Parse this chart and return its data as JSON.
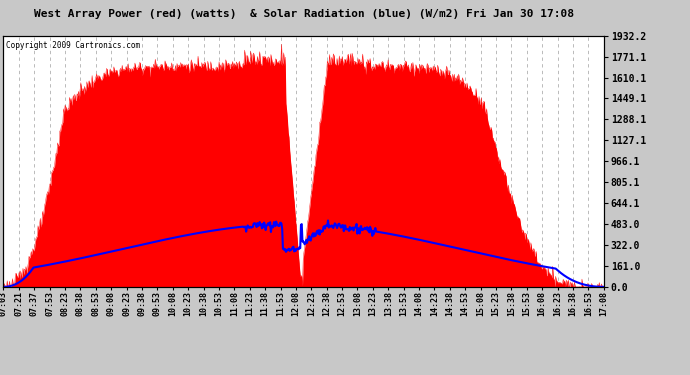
{
  "title": "West Array Power (red) (watts)  & Solar Radiation (blue) (W/m2) Fri Jan 30 17:08",
  "copyright": "Copyright 2009 Cartronics.com",
  "bg_color": "#c8c8c8",
  "plot_bg_color": "#ffffff",
  "grid_color": "#b0b0b0",
  "red_color": "#ff0000",
  "blue_color": "#0000ff",
  "y_right_ticks": [
    0.0,
    161.0,
    322.0,
    483.0,
    644.1,
    805.1,
    966.1,
    1127.1,
    1288.1,
    1449.1,
    1610.1,
    1771.1,
    1932.2
  ],
  "y_right_labels": [
    "0.0",
    "161.0",
    "322.0",
    "483.0",
    "644.1",
    "805.1",
    "966.1",
    "1127.1",
    "1288.1",
    "1449.1",
    "1610.1",
    "1771.1",
    "1932.2"
  ],
  "x_tick_labels": [
    "07:03",
    "07:21",
    "07:37",
    "07:53",
    "08:23",
    "08:38",
    "08:53",
    "09:08",
    "09:23",
    "09:38",
    "09:53",
    "10:08",
    "10:23",
    "10:38",
    "10:53",
    "11:08",
    "11:23",
    "11:38",
    "11:53",
    "12:08",
    "12:23",
    "12:38",
    "12:53",
    "13:08",
    "13:23",
    "13:38",
    "13:53",
    "14:08",
    "14:23",
    "14:38",
    "14:53",
    "15:08",
    "15:23",
    "15:38",
    "15:53",
    "16:08",
    "16:23",
    "16:38",
    "16:53",
    "17:08"
  ],
  "ymax": 1932.2,
  "power_scale_max": 1932.2,
  "radiation_axis_peak": 483.0,
  "n_points": 800
}
